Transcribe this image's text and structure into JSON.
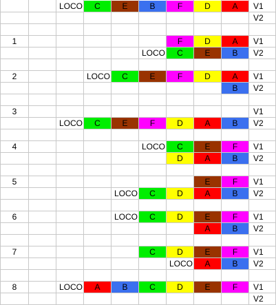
{
  "colors": {
    "A": "#ff0000",
    "B": "#3b70ef",
    "C": "#00ee00",
    "D": "#ffff00",
    "E": "#993300",
    "F": "#ff00ff"
  },
  "track_labels": [
    "V1",
    "V2"
  ],
  "steps": [
    {
      "label": "",
      "v1": [
        "LOCO",
        "C",
        "E",
        "B",
        "F",
        "D",
        "A"
      ],
      "v2": [
        "",
        "",
        "",
        "",
        "",
        "",
        ""
      ]
    },
    {
      "label": "1",
      "v1": [
        "",
        "",
        "",
        "",
        "F",
        "D",
        "A"
      ],
      "v2": [
        "",
        "",
        "",
        "LOCO",
        "C",
        "E",
        "B"
      ]
    },
    {
      "label": "2",
      "v1": [
        "",
        "LOCO",
        "C",
        "E",
        "F",
        "D",
        "A"
      ],
      "v2": [
        "",
        "",
        "",
        "",
        "",
        "",
        "B"
      ]
    },
    {
      "label": "3",
      "v1": [
        "",
        "",
        "",
        "",
        "",
        "",
        ""
      ],
      "v2": [
        "LOCO",
        "C",
        "E",
        "F",
        "D",
        "A",
        "B"
      ]
    },
    {
      "label": "4",
      "v1": [
        "",
        "",
        "",
        "LOCO",
        "C",
        "E",
        "F"
      ],
      "v2": [
        "",
        "",
        "",
        "",
        "D",
        "A",
        "B"
      ]
    },
    {
      "label": "5",
      "v1": [
        "",
        "",
        "",
        "",
        "",
        "E",
        "F"
      ],
      "v2": [
        "",
        "",
        "LOCO",
        "C",
        "D",
        "A",
        "B"
      ]
    },
    {
      "label": "6",
      "v1": [
        "",
        "",
        "LOCO",
        "C",
        "D",
        "E",
        "F"
      ],
      "v2": [
        "",
        "",
        "",
        "",
        "",
        "A",
        "B"
      ]
    },
    {
      "label": "7",
      "v1": [
        "",
        "",
        "",
        "C",
        "D",
        "E",
        "F"
      ],
      "v2": [
        "",
        "",
        "",
        "",
        "LOCO",
        "A",
        "B"
      ]
    },
    {
      "label": "8",
      "v1": [
        "LOCO",
        "A",
        "B",
        "C",
        "D",
        "E",
        "F"
      ],
      "v2": [
        "",
        "",
        "",
        "",
        "",
        "",
        ""
      ]
    }
  ]
}
